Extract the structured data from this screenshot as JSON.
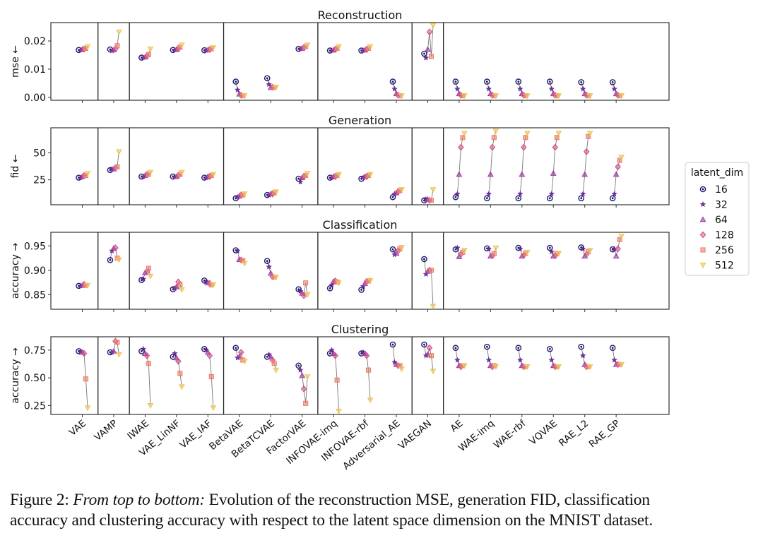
{
  "chart_data": [
    {
      "type": "scatter",
      "title": "Reconstruction",
      "ylabel": "mse",
      "ylabel_arrow": "down",
      "ylim": [
        -0.001,
        0.0265
      ],
      "yticks": [
        0.0,
        0.01,
        0.02
      ],
      "ytick_labels": [
        "0.00",
        "0.01",
        "0.02"
      ],
      "categories": [
        "VAE",
        "VAMP",
        "IWAE",
        "VAE_LinNF",
        "VAE_IAF",
        "BetaVAE",
        "BetaTCVAE",
        "FactorVAE",
        "INFOVAE-imq",
        "INFOVAE-rbf",
        "Adversarial_AE",
        "VAEGAN",
        "AE",
        "WAE-imq",
        "WAE-rbf",
        "VQVAE",
        "RAE_L2",
        "RAE_GP"
      ],
      "series": [
        {
          "name": "16",
          "values": [
            0.0168,
            0.017,
            0.0141,
            0.0168,
            0.0167,
            0.0056,
            0.0068,
            0.0172,
            0.0166,
            0.0166,
            0.0056,
            0.0155,
            0.0056,
            0.0056,
            0.0056,
            0.0056,
            0.0054,
            0.0054
          ]
        },
        {
          "name": "32",
          "values": [
            0.0168,
            0.0165,
            0.0141,
            0.0168,
            0.0167,
            0.0027,
            0.0046,
            0.0172,
            0.0166,
            0.0166,
            0.003,
            0.014,
            0.003,
            0.003,
            0.003,
            0.003,
            0.003,
            0.003
          ]
        },
        {
          "name": "64",
          "values": [
            0.017,
            0.0168,
            0.0143,
            0.017,
            0.0168,
            0.0012,
            0.0035,
            0.0174,
            0.0168,
            0.0168,
            0.0013,
            0.017,
            0.0013,
            0.0013,
            0.0013,
            0.0013,
            0.0013,
            0.0013
          ]
        },
        {
          "name": "128",
          "values": [
            0.0171,
            0.0172,
            0.0146,
            0.0172,
            0.017,
            0.0008,
            0.0036,
            0.0176,
            0.017,
            0.017,
            0.0008,
            0.0232,
            0.0008,
            0.0008,
            0.0008,
            0.0008,
            0.0008,
            0.0008
          ]
        },
        {
          "name": "256",
          "values": [
            0.0174,
            0.0183,
            0.0152,
            0.0178,
            0.0172,
            0.0006,
            0.0036,
            0.018,
            0.0174,
            0.0174,
            0.0006,
            0.0145,
            0.0006,
            0.0006,
            0.0006,
            0.0006,
            0.0006,
            0.0006
          ]
        },
        {
          "name": "512",
          "values": [
            0.018,
            0.0232,
            0.0172,
            0.0186,
            0.0176,
            0.0006,
            0.0036,
            0.0186,
            0.018,
            0.018,
            0.0006,
            0.0255,
            0.0006,
            0.0006,
            0.0006,
            0.0006,
            0.0006,
            0.0006
          ]
        }
      ]
    },
    {
      "type": "scatter",
      "title": "Generation",
      "ylabel": "fid",
      "ylabel_arrow": "down",
      "ylim": [
        2,
        73
      ],
      "yticks": [
        25,
        50
      ],
      "ytick_labels": [
        "25",
        "50"
      ],
      "categories": [
        "VAE",
        "VAMP",
        "IWAE",
        "VAE_LinNF",
        "VAE_IAF",
        "BetaVAE",
        "BetaTCVAE",
        "FactorVAE",
        "INFOVAE-imq",
        "INFOVAE-rbf",
        "Adversarial_AE",
        "VAEGAN",
        "AE",
        "WAE-imq",
        "WAE-rbf",
        "VQVAE",
        "RAE_L2",
        "RAE_GP"
      ],
      "series": [
        {
          "name": "16",
          "values": [
            27,
            34,
            28,
            28,
            27,
            8,
            11,
            26,
            27,
            26,
            9,
            6,
            9,
            8,
            8,
            8,
            8,
            8
          ]
        },
        {
          "name": "32",
          "values": [
            27,
            35,
            28,
            28,
            27,
            9,
            11,
            23,
            27,
            27,
            12,
            7,
            12,
            12,
            12,
            12,
            12,
            12
          ]
        },
        {
          "name": "64",
          "values": [
            28,
            35,
            29,
            28,
            28,
            10,
            12,
            27,
            28,
            28,
            13,
            7,
            30,
            30,
            30,
            31,
            30,
            30
          ]
        },
        {
          "name": "128",
          "values": [
            29,
            36,
            30,
            29,
            28,
            11,
            12,
            28,
            28,
            28,
            14,
            6,
            55,
            55,
            55,
            55,
            51,
            37
          ]
        },
        {
          "name": "256",
          "values": [
            29,
            37,
            30,
            30,
            29,
            11,
            13,
            29,
            29,
            29,
            15,
            6,
            64,
            64,
            64,
            64,
            65,
            43
          ]
        },
        {
          "name": "512",
          "values": [
            31,
            51,
            32,
            32,
            30,
            12,
            14,
            31,
            30,
            30,
            16,
            16,
            68,
            70,
            68,
            68,
            68,
            46
          ]
        }
      ]
    },
    {
      "type": "scatter",
      "title": "Classification",
      "ylabel": "accuracy",
      "ylabel_arrow": "up",
      "ylim": [
        0.82,
        0.978
      ],
      "yticks": [
        0.85,
        0.9,
        0.95
      ],
      "ytick_labels": [
        "0.85",
        "0.90",
        "0.95"
      ],
      "categories": [
        "VAE",
        "VAMP",
        "IWAE",
        "VAE_LinNF",
        "VAE_IAF",
        "BetaVAE",
        "BetaTCVAE",
        "FactorVAE",
        "INFOVAE-imq",
        "INFOVAE-rbf",
        "Adversarial_AE",
        "VAEGAN",
        "AE",
        "WAE-imq",
        "WAE-rbf",
        "VQVAE",
        "RAE_L2",
        "RAE_GP"
      ],
      "series": [
        {
          "name": "16",
          "values": [
            0.868,
            0.921,
            0.88,
            0.861,
            0.879,
            0.941,
            0.919,
            0.861,
            0.863,
            0.86,
            0.943,
            0.923,
            0.943,
            0.945,
            0.946,
            0.946,
            0.947,
            0.943
          ]
        },
        {
          "name": "32",
          "values": [
            0.868,
            0.94,
            0.882,
            0.863,
            0.876,
            0.94,
            0.907,
            0.857,
            0.87,
            0.867,
            0.932,
            0.892,
            0.946,
            0.944,
            0.944,
            0.938,
            0.944,
            0.944
          ]
        },
        {
          "name": "64",
          "values": [
            0.869,
            0.945,
            0.895,
            0.866,
            0.874,
            0.922,
            0.894,
            0.853,
            0.877,
            0.873,
            0.935,
            0.898,
            0.928,
            0.929,
            0.929,
            0.929,
            0.929,
            0.929
          ]
        },
        {
          "name": "128",
          "values": [
            0.871,
            0.946,
            0.897,
            0.876,
            0.873,
            0.921,
            0.887,
            0.848,
            0.878,
            0.877,
            0.94,
            0.9,
            0.933,
            0.93,
            0.931,
            0.93,
            0.933,
            0.944
          ]
        },
        {
          "name": "256",
          "values": [
            0.869,
            0.925,
            0.904,
            0.871,
            0.87,
            0.92,
            0.886,
            0.874,
            0.876,
            0.878,
            0.944,
            0.9,
            0.937,
            0.934,
            0.935,
            0.934,
            0.938,
            0.963
          ]
        },
        {
          "name": "512",
          "values": [
            0.869,
            0.922,
            0.888,
            0.86,
            0.87,
            0.914,
            0.886,
            0.85,
            0.874,
            0.879,
            0.947,
            0.826,
            0.941,
            0.946,
            0.937,
            0.935,
            0.941,
            0.97
          ]
        }
      ]
    },
    {
      "type": "scatter",
      "title": "Clustering",
      "ylabel": "accuracy",
      "ylabel_arrow": "up",
      "ylim": [
        0.17,
        0.87
      ],
      "yticks": [
        0.25,
        0.5,
        0.75
      ],
      "ytick_labels": [
        "0.25",
        "0.50",
        "0.75"
      ],
      "categories": [
        "VAE",
        "VAMP",
        "IWAE",
        "VAE_LinNF",
        "VAE_IAF",
        "BetaVAE",
        "BetaTCVAE",
        "FactorVAE",
        "INFOVAE-imq",
        "INFOVAE-rbf",
        "Adversarial_AE",
        "VAEGAN",
        "AE",
        "WAE-imq",
        "WAE-rbf",
        "VQVAE",
        "RAE_L2",
        "RAE_GP"
      ],
      "series": [
        {
          "name": "16",
          "values": [
            0.74,
            0.73,
            0.74,
            0.69,
            0.76,
            0.77,
            0.69,
            0.61,
            0.72,
            0.72,
            0.8,
            0.8,
            0.77,
            0.78,
            0.77,
            0.76,
            0.78,
            0.77
          ]
        },
        {
          "name": "32",
          "values": [
            0.74,
            0.73,
            0.76,
            0.72,
            0.75,
            0.68,
            0.71,
            0.57,
            0.75,
            0.73,
            0.64,
            0.7,
            0.66,
            0.66,
            0.66,
            0.66,
            0.7,
            0.66
          ]
        },
        {
          "name": "64",
          "values": [
            0.73,
            0.74,
            0.72,
            0.68,
            0.73,
            0.69,
            0.69,
            0.52,
            0.72,
            0.72,
            0.62,
            0.71,
            0.61,
            0.61,
            0.61,
            0.61,
            0.62,
            0.62
          ]
        },
        {
          "name": "128",
          "values": [
            0.72,
            0.83,
            0.7,
            0.65,
            0.7,
            0.73,
            0.66,
            0.4,
            0.7,
            0.7,
            0.61,
            0.77,
            0.6,
            0.6,
            0.6,
            0.6,
            0.6,
            0.62
          ]
        },
        {
          "name": "256",
          "values": [
            0.49,
            0.82,
            0.63,
            0.54,
            0.51,
            0.66,
            0.63,
            0.27,
            0.48,
            0.57,
            0.61,
            0.7,
            0.61,
            0.61,
            0.6,
            0.6,
            0.6,
            0.62
          ]
        },
        {
          "name": "512",
          "values": [
            0.23,
            0.71,
            0.25,
            0.42,
            0.23,
            0.65,
            0.57,
            0.51,
            0.2,
            0.3,
            0.58,
            0.56,
            0.61,
            0.6,
            0.6,
            0.6,
            0.6,
            0.62
          ]
        }
      ]
    }
  ],
  "group_separators_after": [
    "VAE",
    "VAMP",
    "VAE_IAF",
    "FactorVAE",
    "Adversarial_AE",
    "VAEGAN"
  ],
  "legend": {
    "title": "latent_dim",
    "placement": "right",
    "entries": [
      {
        "label": "16",
        "marker": "circle-dot",
        "color": "#1e1a6b"
      },
      {
        "label": "32",
        "marker": "star",
        "color": "#5b1f8f"
      },
      {
        "label": "64",
        "marker": "triangle-up",
        "color": "#9b3aa5"
      },
      {
        "label": "128",
        "marker": "diamond",
        "color": "#cf4f8b"
      },
      {
        "label": "256",
        "marker": "square",
        "color": "#ec7d6a"
      },
      {
        "label": "512",
        "marker": "triangle-down",
        "color": "#eec45a"
      }
    ]
  },
  "caption": {
    "prefix": "Figure 2: ",
    "italic": "From top to bottom:",
    "line1_rest": " Evolution of the reconstruction MSE, generation FID, classification",
    "line2": "accuracy and clustering accuracy with respect to the latent space dimension on the MNIST dataset."
  }
}
